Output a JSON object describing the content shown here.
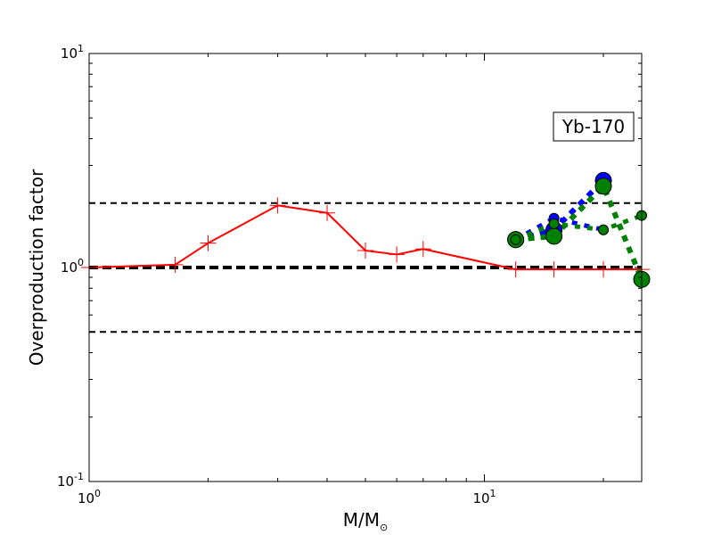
{
  "chart_data": {
    "type": "line",
    "x_scale": "log",
    "y_scale": "log",
    "xlim": [
      1,
      25
    ],
    "ylim": [
      0.1,
      10
    ],
    "xlabel_main": "M/M",
    "xlabel_sub": "⊙",
    "ylabel": "Overproduction factor",
    "annotation": "Yb-170",
    "x_ticks": [
      {
        "value": 1,
        "base": "10",
        "exp": "0"
      },
      {
        "value": 10,
        "base": "10",
        "exp": "1"
      }
    ],
    "y_ticks": [
      {
        "value": 0.1,
        "base": "10",
        "exp": "-1"
      },
      {
        "value": 1,
        "base": "10",
        "exp": "0"
      },
      {
        "value": 10,
        "base": "10",
        "exp": "1"
      }
    ],
    "reference_lines": [
      {
        "y": 2.0,
        "style": "dashed",
        "color": "#000000"
      },
      {
        "y": 1.0,
        "style": "dashed-bold",
        "color": "#000000"
      },
      {
        "y": 0.5,
        "style": "dashed",
        "color": "#000000"
      }
    ],
    "series": [
      {
        "style": "solid-plus",
        "color": "#ff0000",
        "x": [
          1.0,
          1.65,
          2.0,
          3.0,
          4.0,
          5.0,
          6.0,
          7.0,
          12.0,
          15.0,
          20.0,
          25.0
        ],
        "y": [
          1.0,
          1.03,
          1.3,
          1.95,
          1.8,
          1.2,
          1.15,
          1.22,
          0.98,
          0.98,
          0.98,
          0.98
        ]
      },
      {
        "style": "dotted-large-marker",
        "color": "#0000ff",
        "marker_color": "#0000ff",
        "x": [
          12,
          15,
          20
        ],
        "y": [
          1.35,
          1.5,
          2.55
        ]
      },
      {
        "style": "dotted-small-marker",
        "color": "#0000ff",
        "marker_color": "#0000ff",
        "x": [
          12,
          15,
          20
        ],
        "y": [
          1.35,
          1.7,
          1.5
        ]
      },
      {
        "style": "dotted-large-marker",
        "color": "#008000",
        "marker_color": "#008000",
        "x": [
          12,
          15,
          20,
          25
        ],
        "y": [
          1.35,
          1.4,
          2.4,
          0.88
        ]
      },
      {
        "style": "dotted-small-marker",
        "color": "#008000",
        "marker_color": "#008000",
        "x": [
          12,
          15,
          20,
          25
        ],
        "y": [
          1.35,
          1.6,
          1.5,
          1.75
        ]
      }
    ]
  }
}
